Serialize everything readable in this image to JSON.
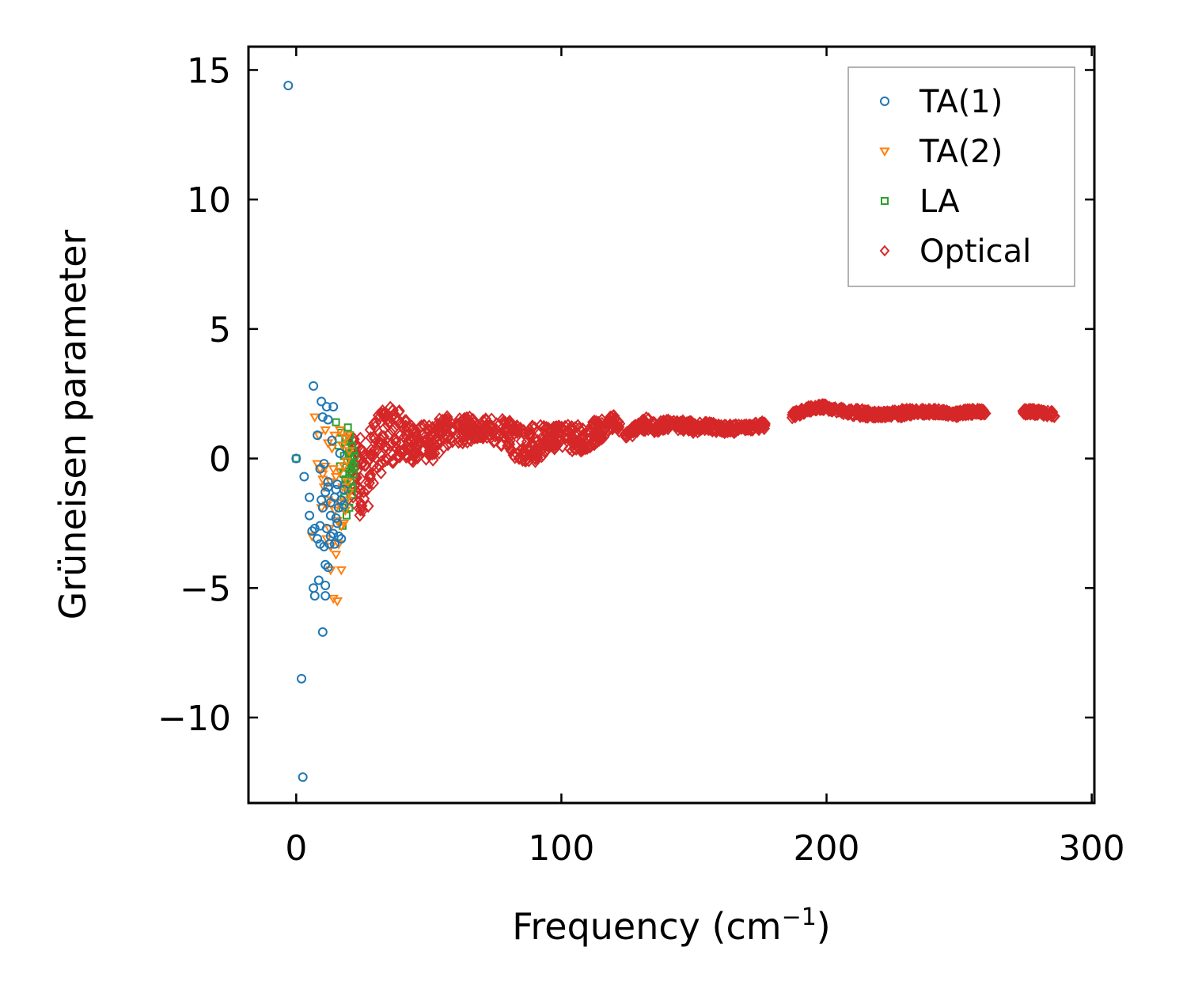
{
  "chart_data": {
    "type": "scatter",
    "title": "",
    "xlabel": "Frequency (cm",
    "xlabel_sup": "−1",
    "xlabel_close": ")",
    "ylabel": "Grüneisen parameter",
    "xlim": [
      -18,
      301
    ],
    "ylim": [
      -13.3,
      15.9
    ],
    "xticks": [
      0,
      100,
      200,
      300
    ],
    "xtick_labels": [
      "0",
      "100",
      "200",
      "300"
    ],
    "yticks": [
      -10,
      -5,
      0,
      5,
      10,
      15
    ],
    "ytick_labels": [
      "−10",
      "−5",
      "0",
      "5",
      "10",
      "15"
    ],
    "grid": false,
    "legend_position": "top-right",
    "series": [
      {
        "name": "TA(1)",
        "color": "#1f77b4",
        "marker": "circle",
        "points": [
          [
            -3,
            14.4
          ],
          [
            2,
            -8.5
          ],
          [
            2.5,
            -12.3
          ],
          [
            0,
            0
          ],
          [
            3,
            -0.7
          ],
          [
            5,
            -1.5
          ],
          [
            5,
            -2.2
          ],
          [
            6,
            -2.8
          ],
          [
            6.5,
            2.8
          ],
          [
            7,
            -2.7
          ],
          [
            6.5,
            -5
          ],
          [
            7,
            -5.3
          ],
          [
            8,
            0.9
          ],
          [
            8,
            -3.1
          ],
          [
            8.5,
            -4.7
          ],
          [
            9,
            -3.3
          ],
          [
            9,
            -0.4
          ],
          [
            9.5,
            2.2
          ],
          [
            10,
            1.6
          ],
          [
            10,
            -6.7
          ],
          [
            10,
            -1.9
          ],
          [
            10.5,
            -0.2
          ],
          [
            11,
            -4.1
          ],
          [
            11,
            -5.3
          ],
          [
            11,
            -4.9
          ],
          [
            11.5,
            -2.7
          ],
          [
            11.5,
            2.0
          ],
          [
            12,
            -1.1
          ],
          [
            12,
            -4.2
          ],
          [
            12,
            1.5
          ],
          [
            12.5,
            -3.3
          ],
          [
            13,
            -2.2
          ],
          [
            13,
            -1.7
          ],
          [
            13.5,
            0.7
          ],
          [
            14,
            2.0
          ],
          [
            14,
            -2.9
          ],
          [
            14.5,
            -3.3
          ],
          [
            15,
            -1.2
          ],
          [
            15,
            -2.3
          ],
          [
            15.5,
            -1.0
          ],
          [
            16,
            -1.9
          ],
          [
            16,
            -3.0
          ],
          [
            16.5,
            0.2
          ],
          [
            17,
            -1.6
          ],
          [
            17,
            -3.1
          ],
          [
            18,
            -1.8
          ],
          [
            18,
            -1.2
          ],
          [
            9,
            -2.6
          ],
          [
            10.5,
            -3.4
          ],
          [
            12,
            -0.9
          ],
          [
            13,
            -3.0
          ],
          [
            14.5,
            -1.5
          ],
          [
            15.5,
            -2.5
          ],
          [
            11,
            -1.3
          ],
          [
            9.5,
            -1.6
          ]
        ]
      },
      {
        "name": "TA(2)",
        "color": "#ff7f0e",
        "marker": "triangle-down",
        "points": [
          [
            7,
            1.6
          ],
          [
            8,
            -0.2
          ],
          [
            8.5,
            0.9
          ],
          [
            9,
            -0.4
          ],
          [
            10,
            -0.8
          ],
          [
            10,
            -0.6
          ],
          [
            10.5,
            -1.1
          ],
          [
            11,
            1.1
          ],
          [
            11,
            -0.3
          ],
          [
            11.5,
            -3.1
          ],
          [
            12,
            -1.6
          ],
          [
            12,
            0.6
          ],
          [
            13,
            -0.9
          ],
          [
            13,
            -4.3
          ],
          [
            13.5,
            0.4
          ],
          [
            14,
            -5.4
          ],
          [
            14.5,
            -2.0
          ],
          [
            14.5,
            0.9
          ],
          [
            15,
            -3.7
          ],
          [
            15,
            -0.7
          ],
          [
            15.5,
            -5.5
          ],
          [
            16,
            -3.3
          ],
          [
            16,
            -1.7
          ],
          [
            16.5,
            1.1
          ],
          [
            17,
            -4.3
          ],
          [
            17,
            -2.6
          ],
          [
            17.5,
            -1.1
          ],
          [
            17.5,
            0.5
          ],
          [
            18,
            -0.3
          ],
          [
            18.5,
            -2.0
          ],
          [
            18.5,
            0.8
          ],
          [
            19,
            -1.6
          ],
          [
            19,
            -0.1
          ],
          [
            19.5,
            -0.9
          ],
          [
            20,
            0.3
          ],
          [
            20,
            -1.3
          ],
          [
            6,
            -3.0
          ],
          [
            9.5,
            -1.9
          ],
          [
            12.5,
            -2.7
          ],
          [
            14,
            -0.4
          ],
          [
            15.5,
            -2.4
          ],
          [
            16.5,
            -0.5
          ],
          [
            18,
            -2.5
          ],
          [
            19.5,
            0.9
          ],
          [
            13,
            -3.4
          ],
          [
            11.5,
            -1.8
          ]
        ]
      },
      {
        "name": "LA",
        "color": "#2ca02c",
        "marker": "square",
        "points": [
          [
            0,
            0
          ],
          [
            15,
            1.4
          ],
          [
            16,
            0.5
          ],
          [
            16.5,
            -0.3
          ],
          [
            17,
            1.0
          ],
          [
            17.5,
            -1.9
          ],
          [
            17.5,
            -2.6
          ],
          [
            18,
            0.1
          ],
          [
            18,
            -1.5
          ],
          [
            18.5,
            0.8
          ],
          [
            18.5,
            -0.8
          ],
          [
            19,
            -2.2
          ],
          [
            19,
            0.4
          ],
          [
            19.5,
            -1.2
          ],
          [
            19.5,
            1.2
          ],
          [
            20,
            -0.5
          ],
          [
            20,
            0.7
          ],
          [
            20,
            -1.9
          ],
          [
            20.5,
            0.0
          ],
          [
            20.5,
            -0.9
          ],
          [
            21,
            0.5
          ],
          [
            21,
            -1.4
          ],
          [
            21,
            -0.2
          ],
          [
            21.5,
            0.3
          ],
          [
            21.5,
            -0.6
          ],
          [
            22,
            0.1
          ],
          [
            22,
            -0.3
          ],
          [
            19.2,
            -0.1
          ],
          [
            20.2,
            0.9
          ],
          [
            18.8,
            -1.0
          ],
          [
            21.2,
            -1.1
          ],
          [
            19.8,
            0.2
          ],
          [
            17.8,
            -0.6
          ],
          [
            20.8,
            -0.4
          ]
        ]
      },
      {
        "name": "Optical",
        "color": "#d62728",
        "marker": "diamond",
        "band": [
          [
            21,
            -1.8,
            1.0
          ],
          [
            24,
            -2.2,
            0.9
          ],
          [
            27,
            -2.0,
            1.0
          ],
          [
            30,
            -1.0,
            1.6
          ],
          [
            33,
            -0.4,
            1.9
          ],
          [
            36,
            -0.2,
            2.2
          ],
          [
            40,
            0.1,
            1.8
          ],
          [
            44,
            -0.2,
            1.2
          ],
          [
            48,
            0.0,
            1.3
          ],
          [
            52,
            -0.1,
            1.4
          ],
          [
            56,
            0.3,
            1.7
          ],
          [
            60,
            0.6,
            1.5
          ],
          [
            65,
            0.6,
            1.6
          ],
          [
            70,
            0.8,
            1.6
          ],
          [
            75,
            0.5,
            1.5
          ],
          [
            80,
            0.1,
            1.6
          ],
          [
            84,
            -0.2,
            1.4
          ],
          [
            88,
            -0.3,
            1.3
          ],
          [
            92,
            0.0,
            1.3
          ],
          [
            96,
            0.2,
            1.2
          ],
          [
            100,
            0.4,
            1.3
          ],
          [
            104,
            0.2,
            1.3
          ],
          [
            108,
            0.3,
            1.3
          ],
          [
            112,
            0.5,
            1.5
          ],
          [
            116,
            0.8,
            1.6
          ],
          [
            120,
            1.2,
            1.7
          ],
          [
            124,
            0.8,
            1.0
          ],
          [
            128,
            0.9,
            1.3
          ],
          [
            132,
            1.1,
            1.6
          ],
          [
            136,
            1.0,
            1.4
          ],
          [
            140,
            1.1,
            1.5
          ],
          [
            145,
            1.1,
            1.5
          ],
          [
            150,
            1.0,
            1.4
          ],
          [
            155,
            1.1,
            1.4
          ],
          [
            160,
            1.0,
            1.3
          ],
          [
            165,
            1.0,
            1.3
          ],
          [
            170,
            1.1,
            1.3
          ],
          [
            175,
            1.1,
            1.4
          ],
          [
            188,
            1.6,
            1.8
          ],
          [
            193,
            1.8,
            2.0
          ],
          [
            198,
            1.9,
            2.1
          ],
          [
            203,
            1.8,
            2.0
          ],
          [
            208,
            1.7,
            1.9
          ],
          [
            213,
            1.6,
            1.9
          ],
          [
            218,
            1.6,
            1.8
          ],
          [
            223,
            1.6,
            1.8
          ],
          [
            228,
            1.6,
            1.9
          ],
          [
            233,
            1.7,
            1.9
          ],
          [
            238,
            1.7,
            1.9
          ],
          [
            243,
            1.7,
            1.9
          ],
          [
            248,
            1.6,
            1.8
          ],
          [
            253,
            1.7,
            1.9
          ],
          [
            258,
            1.7,
            1.9
          ],
          [
            275,
            1.7,
            1.9
          ],
          [
            280,
            1.7,
            1.9
          ],
          [
            286,
            1.6,
            1.8
          ]
        ],
        "x_gaps": [
          [
            122,
            124
          ],
          [
            177,
            187
          ],
          [
            260,
            274
          ]
        ],
        "n_points": 1500
      }
    ]
  }
}
